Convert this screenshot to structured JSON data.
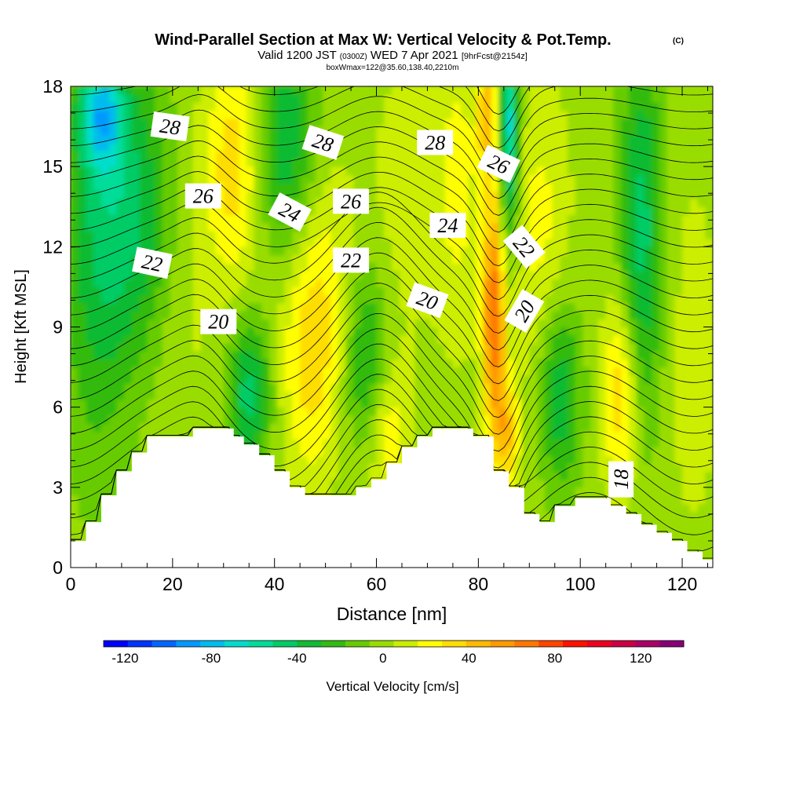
{
  "title": {
    "main": "Wind-Parallel Section at Max W: Vertical Velocity & Pot.Temp.",
    "copyright": "(C)",
    "valid_prefix": "Valid 1200 JST",
    "valid_zulu": "(0300Z)",
    "valid_date": "WED 7 Apr 2021",
    "forecast": "[9hrFcst@2154z]",
    "box_info": "boxWmax=122@35.60,138.40,2210m"
  },
  "chart_data": {
    "type": "heatmap",
    "xlabel": "Distance [nm]",
    "ylabel": "Height [Kft MSL]",
    "xlim": [
      0,
      126
    ],
    "ylim": [
      0,
      18
    ],
    "x_ticks": [
      "0",
      "20",
      "40",
      "60",
      "80",
      "100",
      "120"
    ],
    "y_ticks": [
      "0",
      "3",
      "6",
      "9",
      "12",
      "15",
      "18"
    ],
    "colorbar": {
      "label": "Vertical Velocity [cm/s]",
      "range": [
        -130,
        140
      ],
      "tick_labels": [
        "-120",
        "-80",
        "-40",
        "0",
        "40",
        "80",
        "120"
      ],
      "colors": [
        "#0000ff",
        "#0033ff",
        "#0066ff",
        "#0099ff",
        "#00bbee",
        "#00ddcc",
        "#00dd99",
        "#00cc66",
        "#11bb33",
        "#33bb11",
        "#66cc00",
        "#99dd00",
        "#ccee00",
        "#ffff00",
        "#ffdd00",
        "#ffbb00",
        "#ff9900",
        "#ff7700",
        "#ff4400",
        "#ff1100",
        "#ee0022",
        "#cc0044",
        "#aa0066",
        "#880077"
      ]
    },
    "terrain_top_kft": [
      [
        0,
        1.0
      ],
      [
        1,
        1.0
      ],
      [
        2,
        1.0
      ],
      [
        3,
        1.7
      ],
      [
        4,
        1.7
      ],
      [
        5,
        1.7
      ],
      [
        6,
        2.7
      ],
      [
        7,
        2.7
      ],
      [
        8,
        2.7
      ],
      [
        9,
        3.6
      ],
      [
        10,
        3.6
      ],
      [
        11,
        3.6
      ],
      [
        12,
        4.3
      ],
      [
        13,
        4.3
      ],
      [
        14,
        4.3
      ],
      [
        15,
        4.9
      ],
      [
        16,
        4.9
      ],
      [
        17,
        4.9
      ],
      [
        18,
        4.9
      ],
      [
        19,
        4.9
      ],
      [
        20,
        4.9
      ],
      [
        21,
        4.9
      ],
      [
        22,
        4.9
      ],
      [
        23,
        4.9
      ],
      [
        24,
        5.2
      ],
      [
        25,
        5.2
      ],
      [
        26,
        5.2
      ],
      [
        27,
        5.2
      ],
      [
        28,
        5.2
      ],
      [
        29,
        5.2
      ],
      [
        30,
        5.2
      ],
      [
        31,
        5.2
      ],
      [
        32,
        4.9
      ],
      [
        33,
        4.9
      ],
      [
        34,
        4.6
      ],
      [
        35,
        4.6
      ],
      [
        36,
        4.6
      ],
      [
        37,
        4.2
      ],
      [
        38,
        4.2
      ],
      [
        39,
        4.2
      ],
      [
        40,
        3.6
      ],
      [
        41,
        3.6
      ],
      [
        42,
        3.6
      ],
      [
        43,
        3.0
      ],
      [
        44,
        3.0
      ],
      [
        45,
        3.0
      ],
      [
        46,
        2.7
      ],
      [
        47,
        2.7
      ],
      [
        48,
        2.7
      ],
      [
        49,
        2.7
      ],
      [
        50,
        2.7
      ],
      [
        51,
        2.7
      ],
      [
        52,
        2.7
      ],
      [
        53,
        2.7
      ],
      [
        54,
        2.7
      ],
      [
        55,
        2.7
      ],
      [
        56,
        3.0
      ],
      [
        57,
        3.0
      ],
      [
        58,
        3.0
      ],
      [
        59,
        3.3
      ],
      [
        60,
        3.3
      ],
      [
        61,
        3.3
      ],
      [
        62,
        3.9
      ],
      [
        63,
        3.9
      ],
      [
        64,
        3.9
      ],
      [
        65,
        4.5
      ],
      [
        66,
        4.5
      ],
      [
        67,
        4.5
      ],
      [
        68,
        4.9
      ],
      [
        69,
        4.9
      ],
      [
        70,
        4.9
      ],
      [
        71,
        5.2
      ],
      [
        72,
        5.2
      ],
      [
        73,
        5.2
      ],
      [
        74,
        5.2
      ],
      [
        75,
        5.2
      ],
      [
        76,
        5.2
      ],
      [
        77,
        5.2
      ],
      [
        78,
        5.2
      ],
      [
        79,
        4.9
      ],
      [
        80,
        4.9
      ],
      [
        81,
        4.9
      ],
      [
        82,
        4.9
      ],
      [
        83,
        3.6
      ],
      [
        84,
        3.6
      ],
      [
        85,
        3.6
      ],
      [
        86,
        3.0
      ],
      [
        87,
        3.0
      ],
      [
        88,
        3.0
      ],
      [
        89,
        2.0
      ],
      [
        90,
        2.0
      ],
      [
        91,
        2.0
      ],
      [
        92,
        1.7
      ],
      [
        93,
        1.7
      ],
      [
        94,
        1.7
      ],
      [
        95,
        2.3
      ],
      [
        96,
        2.3
      ],
      [
        97,
        2.3
      ],
      [
        98,
        2.3
      ],
      [
        99,
        2.6
      ],
      [
        100,
        2.6
      ],
      [
        101,
        2.6
      ],
      [
        102,
        2.6
      ],
      [
        103,
        2.6
      ],
      [
        104,
        2.6
      ],
      [
        105,
        2.6
      ],
      [
        106,
        2.3
      ],
      [
        107,
        2.3
      ],
      [
        108,
        2.3
      ],
      [
        109,
        2.0
      ],
      [
        110,
        2.0
      ],
      [
        111,
        2.0
      ],
      [
        112,
        1.6
      ],
      [
        113,
        1.6
      ],
      [
        114,
        1.6
      ],
      [
        115,
        1.3
      ],
      [
        116,
        1.3
      ],
      [
        117,
        1.3
      ],
      [
        118,
        1.0
      ],
      [
        119,
        1.0
      ],
      [
        120,
        1.0
      ],
      [
        121,
        0.6
      ],
      [
        122,
        0.6
      ],
      [
        123,
        0.6
      ],
      [
        124,
        0.3
      ],
      [
        125,
        0.3
      ],
      [
        126,
        0.3
      ]
    ],
    "velocity_features": [
      {
        "x": 5,
        "y": 12.0,
        "value": -30,
        "sx": 5,
        "sy": 6
      },
      {
        "x": 6,
        "y": 17,
        "value": -55,
        "sx": 3,
        "sy": 1.5
      },
      {
        "x": 13,
        "y": 13.5,
        "value": -35,
        "sx": 6,
        "sy": 4
      },
      {
        "x": 22,
        "y": 11.0,
        "value": 10,
        "sx": 4,
        "sy": 5
      },
      {
        "x": 32,
        "y": 15.0,
        "value": 35,
        "sx": 4,
        "sy": 3
      },
      {
        "x": 35,
        "y": 6.5,
        "value": -45,
        "sx": 3,
        "sy": 2
      },
      {
        "x": 42,
        "y": 16.0,
        "value": -40,
        "sx": 4,
        "sy": 3
      },
      {
        "x": 47,
        "y": 7.5,
        "value": 30,
        "sx": 4,
        "sy": 3
      },
      {
        "x": 50,
        "y": 11,
        "value": 15,
        "sx": 5,
        "sy": 3
      },
      {
        "x": 58,
        "y": 7.8,
        "value": -35,
        "sx": 3,
        "sy": 2.5
      },
      {
        "x": 62,
        "y": 5,
        "value": 25,
        "sx": 3,
        "sy": 2
      },
      {
        "x": 66,
        "y": 14,
        "value": 10,
        "sx": 5,
        "sy": 4
      },
      {
        "x": 76,
        "y": 14.5,
        "value": 20,
        "sx": 3,
        "sy": 4
      },
      {
        "x": 83,
        "y": 9.5,
        "value": 70,
        "sx": 1.6,
        "sy": 3
      },
      {
        "x": 82,
        "y": 17,
        "value": 45,
        "sx": 1.5,
        "sy": 2
      },
      {
        "x": 86,
        "y": 16.5,
        "value": -70,
        "sx": 1.4,
        "sy": 3
      },
      {
        "x": 85.5,
        "y": 5,
        "value": 40,
        "sx": 1.8,
        "sy": 1.5
      },
      {
        "x": 96,
        "y": 6.5,
        "value": -40,
        "sx": 3,
        "sy": 2.5
      },
      {
        "x": 92,
        "y": 12.5,
        "value": 20,
        "sx": 4,
        "sy": 4
      },
      {
        "x": 108,
        "y": 6.5,
        "value": 40,
        "sx": 2.5,
        "sy": 2.5
      },
      {
        "x": 112,
        "y": 12.5,
        "value": -45,
        "sx": 3,
        "sy": 5
      },
      {
        "x": 122,
        "y": 8,
        "value": 10,
        "sx": 4,
        "sy": 5
      }
    ],
    "theta_contour_labels": [
      {
        "text": "28",
        "x": 19.5,
        "y": 16.5,
        "angle": 8
      },
      {
        "text": "28",
        "x": 49.5,
        "y": 15.9,
        "angle": 18
      },
      {
        "text": "28",
        "x": 71.5,
        "y": 15.9,
        "angle": 0
      },
      {
        "text": "26",
        "x": 84,
        "y": 15.1,
        "angle": 25
      },
      {
        "text": "26",
        "x": 26,
        "y": 13.9,
        "angle": 0
      },
      {
        "text": "26",
        "x": 55,
        "y": 13.7,
        "angle": 0
      },
      {
        "text": "24",
        "x": 43,
        "y": 13.3,
        "angle": 28
      },
      {
        "text": "24",
        "x": 74,
        "y": 12.8,
        "angle": 0
      },
      {
        "text": "22",
        "x": 16,
        "y": 11.4,
        "angle": 12
      },
      {
        "text": "22",
        "x": 55,
        "y": 11.5,
        "angle": 0
      },
      {
        "text": "22",
        "x": 89,
        "y": 12.0,
        "angle": 50
      },
      {
        "text": "20",
        "x": 29,
        "y": 9.2,
        "angle": 0
      },
      {
        "text": "20",
        "x": 70,
        "y": 10.0,
        "angle": 20
      },
      {
        "text": "20",
        "x": 89,
        "y": 9.6,
        "angle": -60
      },
      {
        "text": "18",
        "x": 108,
        "y": 3.3,
        "angle": -90
      }
    ]
  }
}
